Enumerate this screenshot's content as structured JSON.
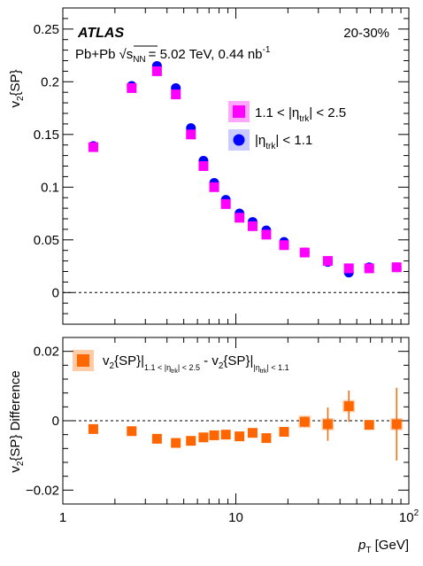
{
  "chart_data": [
    {
      "type": "scatter",
      "panel": "top",
      "ylabel_main": "v",
      "ylabel_sub": "2",
      "ylabel_tail": "{SP}",
      "xscale": "log",
      "xlim": [
        1,
        100
      ],
      "ylim": [
        -0.03,
        0.27
      ],
      "y_ticks": [
        0,
        0.05,
        0.1,
        0.15,
        0.2,
        0.25
      ],
      "y_tick_labels": [
        "0",
        "0.05",
        "0.1",
        "0.15",
        "0.2",
        "0.25"
      ],
      "reference_line": 0,
      "annotations": {
        "experiment": "ATLAS",
        "centrality": "20-30%",
        "system": "Pb+Pb",
        "energy": "= 5.02 TeV, 0.44 nb",
        "lumi_exp": "-1",
        "sqrt_s": "s",
        "sqrt_s_sub": "NN"
      },
      "legend": [
        {
          "eta_lo": "1.1 < |η",
          "eta_sub": "trk",
          "eta_hi": "| < 2.5"
        },
        {
          "eta_lo": "|η",
          "eta_sub": "trk",
          "eta_hi": "| < 1.1"
        }
      ],
      "series": [
        {
          "color": "#ff00ff",
          "marker": "square",
          "x": [
            1.5,
            2.5,
            3.5,
            4.5,
            5.5,
            6.5,
            7.5,
            8.75,
            10.5,
            12.5,
            15.0,
            19.0,
            25.0,
            34.0,
            45.0,
            59.0,
            85.0
          ],
          "y": [
            0.138,
            0.194,
            0.21,
            0.188,
            0.15,
            0.12,
            0.1,
            0.084,
            0.071,
            0.063,
            0.055,
            0.045,
            0.038,
            0.03,
            0.023,
            0.023,
            0.024
          ]
        },
        {
          "color": "#0000ff",
          "marker": "circle",
          "x": [
            1.5,
            2.5,
            3.5,
            4.5,
            5.5,
            6.5,
            7.5,
            8.75,
            10.5,
            12.5,
            15.0,
            19.0,
            25.0,
            34.0,
            45.0,
            59.0,
            85.0
          ],
          "y": [
            0.139,
            0.196,
            0.215,
            0.194,
            0.156,
            0.125,
            0.104,
            0.088,
            0.075,
            0.067,
            0.059,
            0.048,
            0.038,
            0.029,
            0.019,
            0.024,
            0.024
          ]
        }
      ]
    },
    {
      "type": "scatter",
      "panel": "bottom",
      "ylabel_main": "v",
      "ylabel_sub": "2",
      "ylabel_tail": "{SP} Difference",
      "xlabel_main": "p",
      "xlabel_sub": "T",
      "xlabel_tail": " [GeV]",
      "xscale": "log",
      "xlim": [
        1,
        100
      ],
      "x_tick_labels": [
        "1",
        "10",
        "10"
      ],
      "x_tick_exp": "2",
      "ylim": [
        -0.024,
        0.024
      ],
      "y_ticks": [
        -0.02,
        0,
        0.02
      ],
      "y_tick_labels": [
        "−0.02",
        "0",
        "0.02"
      ],
      "reference_line": 0,
      "legend": {
        "prefix": "v",
        "prefix_sub": "2",
        "a": "{SP}|",
        "a_sub": "1.1 < |η",
        "a_sub2": "trk",
        "a_sub3": "| < 2.5",
        "mid": " - v",
        "mid_sub": "2",
        "b": "{SP}|",
        "b_sub": "|η",
        "b_sub2": "trk",
        "b_sub3": "| < 1.1"
      },
      "series": [
        {
          "color": "#ff6600",
          "marker": "square",
          "x": [
            1.5,
            2.5,
            3.5,
            4.5,
            5.5,
            6.5,
            7.5,
            8.75,
            10.5,
            12.5,
            15.0,
            19.0,
            25.0,
            34.0,
            45.0,
            59.0,
            85.0
          ],
          "y": [
            -0.0024,
            -0.003,
            -0.0052,
            -0.0064,
            -0.0058,
            -0.0048,
            -0.0042,
            -0.004,
            -0.0045,
            -0.0035,
            -0.005,
            -0.0032,
            -0.0003,
            -0.001,
            0.0042,
            -0.0012,
            -0.001
          ],
          "yerr": [
            0,
            0,
            0,
            0,
            0,
            0,
            0,
            0,
            0,
            0,
            0,
            0,
            0.0015,
            0.0048,
            0.0045,
            0.0,
            0.0105
          ]
        }
      ]
    }
  ]
}
